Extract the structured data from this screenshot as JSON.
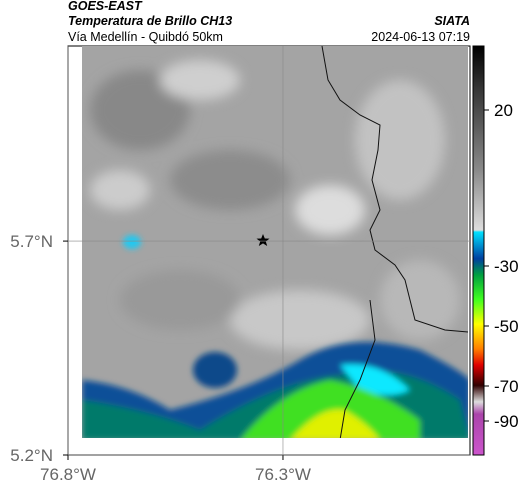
{
  "header": {
    "source": "GOES-EAST",
    "product": "Temperatura de Brillo CH13",
    "agency": "SIATA",
    "region": "Vía Medellín - Quibdó 50km",
    "timestamp": "2024-06-13 07:19"
  },
  "map": {
    "xlim": [
      -76.8,
      -75.865
    ],
    "ylim": [
      5.2,
      6.156
    ],
    "xticks": [
      {
        "value": -76.8,
        "label": "76.8°W"
      },
      {
        "value": -76.3,
        "label": "76.3°W"
      }
    ],
    "yticks": [
      {
        "value": 5.2,
        "label": "5.2°N"
      },
      {
        "value": 5.7,
        "label": "5.7°N"
      }
    ],
    "grid": true
  },
  "colorbar": {
    "ticks": [
      20,
      -30,
      -50,
      -70,
      -90
    ]
  }
}
